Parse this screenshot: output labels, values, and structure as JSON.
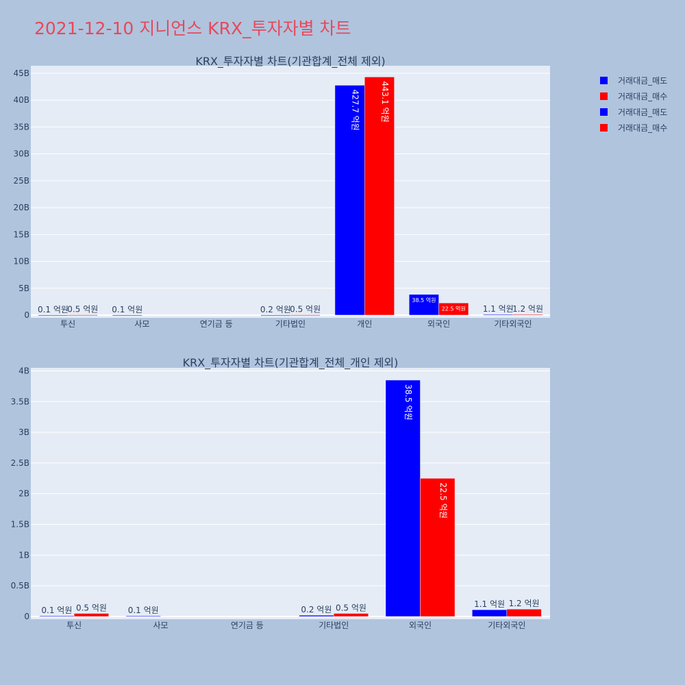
{
  "page_title": "2021-12-10 지니언스 KRX_투자자별 차트",
  "colors": {
    "sell": "#0000ff",
    "buy": "#ff0000",
    "plot_bg": "#e5ecf6",
    "page_bg": "#b0c4de",
    "title": "#e8485a"
  },
  "legend": [
    {
      "label": "거래대금_매도",
      "color": "#0000ff"
    },
    {
      "label": "거래대금_매수",
      "color": "#ff0000"
    },
    {
      "label": "거래대금_매도",
      "color": "#0000ff"
    },
    {
      "label": "거래대금_매수",
      "color": "#ff0000"
    }
  ],
  "chart_data": [
    {
      "type": "bar",
      "title": "KRX_투자자별 차트(기관합계_전체 제외)",
      "categories": [
        "투신",
        "사모",
        "연기금 등",
        "기타법인",
        "개인",
        "외국인",
        "기타외국인"
      ],
      "series": [
        {
          "name": "거래대금_매도",
          "values": [
            10000000,
            10000000,
            0,
            20000000,
            42770000000,
            3850000000,
            110000000
          ],
          "labels": [
            "0.1 억원",
            "0.1 억원",
            "",
            "0.2 억원",
            "427.7 억원",
            "38.5 억원",
            "1.1 억원"
          ]
        },
        {
          "name": "거래대금_매수",
          "values": [
            50000000,
            0,
            0,
            50000000,
            44310000000,
            2250000000,
            120000000
          ],
          "labels": [
            "0.5 억원",
            "",
            "",
            "0.5 억원",
            "443.1 억원",
            "22.5 억원",
            "1.2 억원"
          ]
        }
      ],
      "ylim": [
        0,
        46400000000
      ],
      "yticks": [
        0,
        5000000000,
        10000000000,
        15000000000,
        20000000000,
        25000000000,
        30000000000,
        35000000000,
        40000000000,
        45000000000
      ],
      "ytick_labels": [
        "0",
        "5B",
        "10B",
        "15B",
        "20B",
        "25B",
        "30B",
        "35B",
        "40B",
        "45B"
      ],
      "grid": true
    },
    {
      "type": "bar",
      "title": "KRX_투자자별 차트(기관합계_전체_개인 제외)",
      "categories": [
        "투신",
        "사모",
        "연기금 등",
        "기타법인",
        "외국인",
        "기타외국인"
      ],
      "series": [
        {
          "name": "거래대금_매도",
          "values": [
            10000000,
            10000000,
            0,
            20000000,
            3850000000,
            110000000
          ],
          "labels": [
            "0.1 억원",
            "0.1 억원",
            "",
            "0.2 억원",
            "38.5 억원",
            "1.1 억원"
          ]
        },
        {
          "name": "거래대금_매수",
          "values": [
            50000000,
            0,
            0,
            50000000,
            2250000000,
            120000000
          ],
          "labels": [
            "0.5 억원",
            "",
            "",
            "0.5 억원",
            "22.5 억원",
            "1.2 억원"
          ]
        }
      ],
      "ylim": [
        0,
        4050000000
      ],
      "yticks": [
        0,
        500000000,
        1000000000,
        1500000000,
        2000000000,
        2500000000,
        3000000000,
        3500000000,
        4000000000
      ],
      "ytick_labels": [
        "0",
        "0.5B",
        "1B",
        "1.5B",
        "2B",
        "2.5B",
        "3B",
        "3.5B",
        "4B"
      ],
      "grid": true
    }
  ]
}
